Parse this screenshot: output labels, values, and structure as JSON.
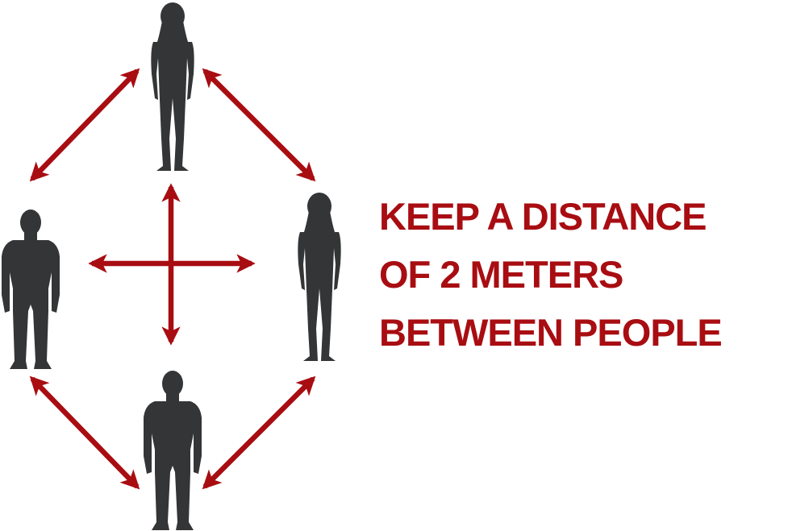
{
  "headline": {
    "lines": [
      "KEEP A DISTANCE",
      "OF 2 METERS",
      "BETWEEN PEOPLE"
    ]
  },
  "colors": {
    "accent": "#a80d12",
    "silhouette": "#333536",
    "background": "#ffffff"
  },
  "figures": [
    {
      "name": "top-woman-figure",
      "kind": "woman-silhouette-icon"
    },
    {
      "name": "left-man-figure",
      "kind": "man-silhouette-icon"
    },
    {
      "name": "right-woman-figure",
      "kind": "woman-silhouette-icon"
    },
    {
      "name": "bottom-man-figure",
      "kind": "man-silhouette-icon"
    }
  ]
}
